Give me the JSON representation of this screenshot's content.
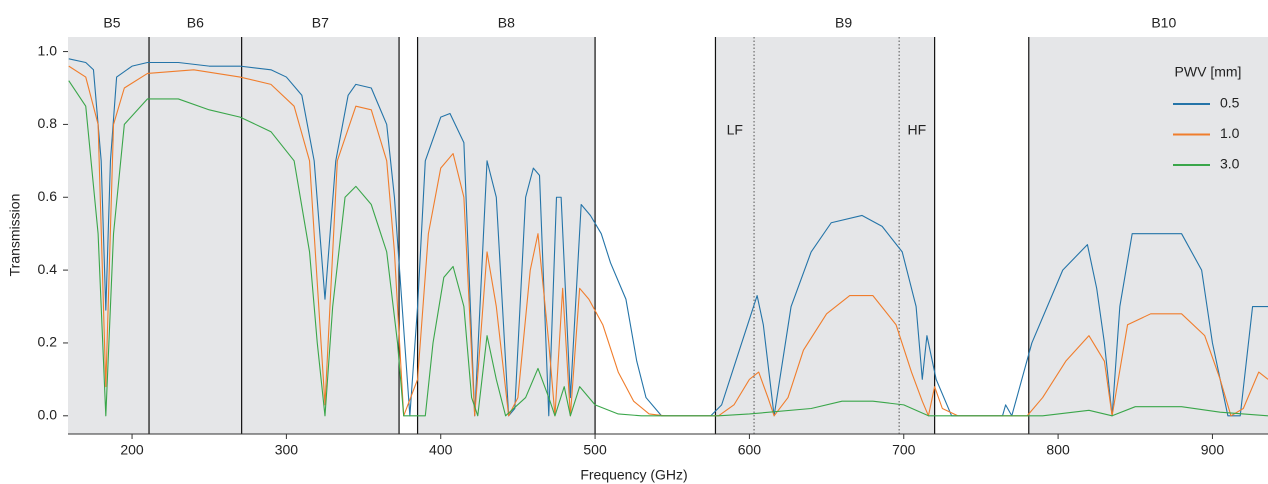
{
  "chart_data": {
    "type": "line",
    "x_label": "Frequency (GHz)",
    "y_label": "Transmission",
    "xlim": [
      158.5,
      936
    ],
    "ylim": [
      -0.05,
      1.04
    ],
    "xticks": [
      200,
      300,
      400,
      500,
      600,
      700,
      800,
      900
    ],
    "yticks": [
      {
        "value": 0,
        "label": "0.0"
      },
      0.2,
      0.4,
      0.6,
      0.8,
      {
        "value": 1,
        "label": "1.0"
      }
    ],
    "shaded_ranges": [
      [
        158.5,
        373
      ],
      [
        385,
        500
      ],
      [
        578,
        720
      ],
      [
        781,
        936
      ]
    ],
    "shade_color": "#e5e6e8",
    "solid_lines": [
      211,
      271,
      373,
      385,
      500,
      578,
      720,
      781
    ],
    "dotted_lines": [
      603,
      697
    ],
    "bands": [
      {
        "label": "B5",
        "range": [
          163,
          211
        ]
      },
      {
        "label": "B6",
        "range": [
          211,
          271
        ]
      },
      {
        "label": "B7",
        "range": [
          271,
          373
        ]
      },
      {
        "label": "B8",
        "range": [
          385,
          500
        ]
      },
      {
        "label": "B9",
        "range": [
          602,
          720
        ]
      },
      {
        "label": "B10",
        "range": [
          787,
          950
        ]
      }
    ],
    "sub_bands": [
      {
        "label": "LF",
        "range": [
          578,
          603
        ]
      },
      {
        "label": "HF",
        "range": [
          697,
          720
        ]
      }
    ],
    "legend_title": "PWV [mm]",
    "legend": "upper right",
    "series": [
      {
        "name": "0.5",
        "color": "#2474a8",
        "x": [
          159,
          170,
          175,
          180,
          183,
          186,
          190,
          200,
          210,
          230,
          250,
          270,
          290,
          300,
          310,
          318,
          325,
          332,
          340,
          345,
          355,
          365,
          370,
          375,
          380,
          385,
          390,
          400,
          406,
          415,
          422,
          430,
          436,
          444,
          448,
          455,
          460,
          464,
          470,
          475,
          478,
          484,
          491,
          497,
          504,
          510,
          520,
          527,
          533,
          543,
          575,
          582,
          595,
          605,
          609,
          616,
          627,
          640,
          653,
          673,
          686,
          699,
          708,
          712,
          715,
          721,
          731,
          764,
          766,
          770,
          783,
          803,
          819,
          825,
          830,
          835,
          840,
          848,
          880,
          893,
          900,
          910,
          918,
          926,
          936
        ],
        "values": [
          0.98,
          0.97,
          0.95,
          0.7,
          0.29,
          0.7,
          0.93,
          0.96,
          0.97,
          0.97,
          0.96,
          0.96,
          0.95,
          0.93,
          0.88,
          0.7,
          0.32,
          0.7,
          0.88,
          0.91,
          0.9,
          0.8,
          0.6,
          0.3,
          0.0,
          0.3,
          0.7,
          0.82,
          0.83,
          0.75,
          0.0,
          0.7,
          0.6,
          0.0,
          0.02,
          0.6,
          0.68,
          0.66,
          0.0,
          0.6,
          0.6,
          0.05,
          0.58,
          0.55,
          0.5,
          0.42,
          0.32,
          0.15,
          0.05,
          0.0,
          0.0,
          0.03,
          0.2,
          0.33,
          0.25,
          0.0,
          0.3,
          0.45,
          0.53,
          0.55,
          0.52,
          0.45,
          0.3,
          0.1,
          0.22,
          0.1,
          0.0,
          0.0,
          0.03,
          0.0,
          0.2,
          0.4,
          0.47,
          0.35,
          0.2,
          0.0,
          0.3,
          0.5,
          0.5,
          0.4,
          0.2,
          0.0,
          0.0,
          0.3,
          0.3
        ]
      },
      {
        "name": "1.0",
        "color": "#f07d2c",
        "x": [
          159,
          170,
          178,
          183,
          188,
          195,
          210,
          240,
          270,
          290,
          305,
          315,
          325,
          333,
          345,
          355,
          365,
          370,
          376,
          385,
          392,
          400,
          408,
          415,
          422,
          430,
          436,
          444,
          450,
          458,
          463,
          470,
          474,
          479,
          484,
          490,
          496,
          505,
          515,
          525,
          535,
          545,
          580,
          590,
          600,
          606,
          612,
          616,
          625,
          635,
          650,
          665,
          680,
          695,
          705,
          712,
          716,
          720,
          725,
          735,
          780,
          790,
          805,
          820,
          830,
          835,
          845,
          860,
          880,
          895,
          905,
          912,
          920,
          930,
          936
        ],
        "values": [
          0.96,
          0.93,
          0.8,
          0.08,
          0.8,
          0.9,
          0.94,
          0.95,
          0.93,
          0.91,
          0.85,
          0.7,
          0.03,
          0.7,
          0.85,
          0.84,
          0.7,
          0.45,
          0.0,
          0.1,
          0.5,
          0.68,
          0.72,
          0.6,
          0.0,
          0.45,
          0.3,
          0.0,
          0.05,
          0.4,
          0.5,
          0.2,
          0.0,
          0.35,
          0.0,
          0.35,
          0.32,
          0.25,
          0.12,
          0.04,
          0.005,
          0.0,
          0.0,
          0.03,
          0.1,
          0.12,
          0.05,
          0.0,
          0.05,
          0.18,
          0.28,
          0.33,
          0.33,
          0.25,
          0.12,
          0.04,
          0.0,
          0.08,
          0.02,
          0.0,
          0.0,
          0.05,
          0.15,
          0.22,
          0.15,
          0.0,
          0.25,
          0.28,
          0.28,
          0.22,
          0.1,
          0.0,
          0.02,
          0.12,
          0.1
        ]
      },
      {
        "name": "3.0",
        "color": "#3aa64a",
        "x": [
          159,
          170,
          178,
          183,
          188,
          195,
          210,
          230,
          250,
          270,
          290,
          305,
          315,
          320,
          325,
          330,
          338,
          345,
          355,
          365,
          372,
          376,
          390,
          395,
          402,
          408,
          415,
          420,
          424,
          430,
          436,
          442,
          455,
          463,
          470,
          474,
          480,
          484,
          490,
          500,
          515,
          530,
          580,
          600,
          640,
          660,
          680,
          700,
          716,
          730,
          790,
          820,
          835,
          850,
          880,
          905,
          936
        ],
        "values": [
          0.92,
          0.85,
          0.5,
          0.0,
          0.5,
          0.8,
          0.87,
          0.87,
          0.84,
          0.82,
          0.78,
          0.7,
          0.45,
          0.2,
          0.0,
          0.3,
          0.6,
          0.63,
          0.58,
          0.45,
          0.2,
          0.0,
          0.0,
          0.2,
          0.38,
          0.41,
          0.3,
          0.05,
          0.0,
          0.22,
          0.1,
          0.0,
          0.05,
          0.13,
          0.05,
          0.0,
          0.08,
          0.0,
          0.08,
          0.03,
          0.005,
          0.0,
          0.0,
          0.005,
          0.02,
          0.04,
          0.04,
          0.03,
          0.0,
          0.0,
          0.0,
          0.015,
          0.0,
          0.025,
          0.025,
          0.01,
          0.0
        ]
      }
    ]
  }
}
